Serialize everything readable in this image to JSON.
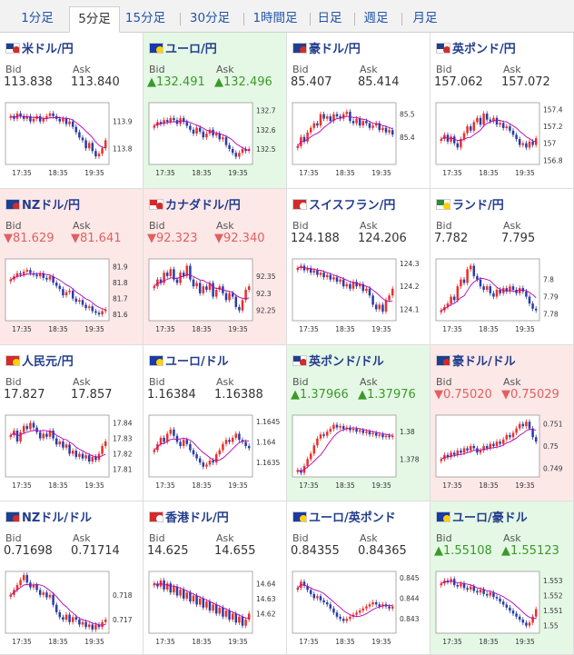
{
  "tabs": [
    "1分足",
    "5分足",
    "15分足",
    "30分足",
    "1時間足",
    "日足",
    "週足",
    "月足"
  ],
  "active_tab": 1,
  "colors": {
    "up_bg": "#e5f8e5",
    "down_bg": "#fde8e8",
    "candle_up": "#e8322a",
    "candle_down": "#2a3da8",
    "ma": "#b400b4",
    "up_text": "#3a9a2a",
    "down_text": "#e06060"
  },
  "labels": {
    "bid": "Bid",
    "ask": "Ask"
  },
  "pairs": [
    {
      "name": "米ドル/円",
      "flag": "us",
      "bid": "113.838",
      "ask": "113.840",
      "trend": "none",
      "chart_data": {
        "type": "candlestick",
        "x_ticks": [
          "17:35",
          "18:35",
          "19:35"
        ],
        "y_ticks": [
          "113.9",
          "113.8"
        ],
        "ylim": [
          113.74,
          113.97
        ],
        "closes": [
          113.92,
          113.91,
          113.93,
          113.92,
          113.91,
          113.92,
          113.9,
          113.91,
          113.92,
          113.9,
          113.91,
          113.92,
          113.93,
          113.92,
          113.91,
          113.9,
          113.91,
          113.89,
          113.9,
          113.88,
          113.86,
          113.84,
          113.83,
          113.8,
          113.82,
          113.79,
          113.77,
          113.78,
          113.8,
          113.83
        ]
      }
    },
    {
      "name": "ユーロ/円",
      "flag": "eu",
      "bid": "▲132.491",
      "ask": "▲132.496",
      "trend": "up",
      "chart_data": {
        "type": "candlestick",
        "x_ticks": [
          "17:35",
          "18:35",
          "19:35"
        ],
        "y_ticks": [
          "132.7",
          "132.6",
          "132.5"
        ],
        "ylim": [
          132.42,
          132.74
        ],
        "closes": [
          132.62,
          132.64,
          132.63,
          132.65,
          132.64,
          132.66,
          132.65,
          132.63,
          132.66,
          132.64,
          132.62,
          132.6,
          132.58,
          132.61,
          132.59,
          132.56,
          132.58,
          132.6,
          132.57,
          132.58,
          132.55,
          132.56,
          132.52,
          132.5,
          132.48,
          132.46,
          132.48,
          132.5,
          132.49,
          132.5
        ]
      }
    },
    {
      "name": "豪ドル/円",
      "flag": "au",
      "bid": "85.407",
      "ask": "85.414",
      "trend": "none",
      "chart_data": {
        "type": "candlestick",
        "x_ticks": [
          "17:35",
          "18:35",
          "19:35"
        ],
        "y_ticks": [
          "85.5",
          "85.4"
        ],
        "ylim": [
          85.28,
          85.55
        ],
        "closes": [
          85.36,
          85.4,
          85.38,
          85.42,
          85.44,
          85.46,
          85.45,
          85.5,
          85.48,
          85.49,
          85.47,
          85.5,
          85.49,
          85.48,
          85.5,
          85.51,
          85.47,
          85.46,
          85.48,
          85.45,
          85.47,
          85.46,
          85.44,
          85.45,
          85.46,
          85.43,
          85.44,
          85.42,
          85.43,
          85.41
        ]
      }
    },
    {
      "name": "英ポンド/円",
      "flag": "gb",
      "bid": "157.062",
      "ask": "157.072",
      "trend": "none",
      "chart_data": {
        "type": "candlestick",
        "x_ticks": [
          "17:35",
          "18:35",
          "19:35"
        ],
        "y_ticks": [
          "157.4",
          "157.2",
          "157",
          "156.8"
        ],
        "ylim": [
          156.75,
          157.48
        ],
        "closes": [
          157.05,
          157.1,
          157.02,
          157.08,
          157.0,
          156.95,
          157.05,
          157.12,
          157.2,
          157.15,
          157.25,
          157.3,
          157.22,
          157.35,
          157.28,
          157.26,
          157.3,
          157.22,
          157.24,
          157.18,
          157.2,
          157.15,
          157.1,
          157.05,
          156.98,
          157.0,
          156.95,
          157.02,
          156.98,
          157.06
        ]
      }
    },
    {
      "name": "NZドル/円",
      "flag": "nz",
      "bid": "▼81.629",
      "ask": "▼81.641",
      "trend": "down",
      "chart_data": {
        "type": "candlestick",
        "x_ticks": [
          "17:35",
          "18:35",
          "19:35"
        ],
        "y_ticks": [
          "81.9",
          "81.8",
          "81.7",
          "81.6"
        ],
        "ylim": [
          81.56,
          81.95
        ],
        "closes": [
          81.82,
          81.84,
          81.86,
          81.85,
          81.87,
          81.88,
          81.86,
          81.85,
          81.84,
          81.86,
          81.83,
          81.82,
          81.84,
          81.8,
          81.78,
          81.76,
          81.72,
          81.74,
          81.75,
          81.7,
          81.68,
          81.69,
          81.66,
          81.64,
          81.65,
          81.62,
          81.61,
          81.6,
          81.62,
          81.63
        ]
      }
    },
    {
      "name": "カナダドル/円",
      "flag": "ca",
      "bid": "▼92.323",
      "ask": "▼92.340",
      "trend": "down",
      "chart_data": {
        "type": "candlestick",
        "x_ticks": [
          "17:35",
          "18:35",
          "19:35"
        ],
        "y_ticks": [
          "92.35",
          "92.3",
          "92.25"
        ],
        "ylim": [
          92.22,
          92.4
        ],
        "closes": [
          92.32,
          92.34,
          92.33,
          92.36,
          92.35,
          92.37,
          92.34,
          92.33,
          92.36,
          92.35,
          92.38,
          92.34,
          92.32,
          92.33,
          92.3,
          92.32,
          92.31,
          92.33,
          92.29,
          92.31,
          92.32,
          92.3,
          92.28,
          92.3,
          92.29,
          92.26,
          92.25,
          92.28,
          92.31,
          92.32
        ]
      }
    },
    {
      "name": "スイスフラン/円",
      "flag": "ch",
      "bid": "124.188",
      "ask": "124.206",
      "trend": "none",
      "chart_data": {
        "type": "candlestick",
        "x_ticks": [
          "17:35",
          "18:35",
          "19:35"
        ],
        "y_ticks": [
          "124.3",
          "124.2",
          "124.1"
        ],
        "ylim": [
          124.05,
          124.32
        ],
        "closes": [
          124.28,
          124.29,
          124.27,
          124.28,
          124.26,
          124.27,
          124.25,
          124.26,
          124.24,
          124.25,
          124.23,
          124.24,
          124.22,
          124.23,
          124.2,
          124.21,
          124.19,
          124.22,
          124.2,
          124.21,
          124.18,
          124.19,
          124.16,
          124.12,
          124.1,
          124.12,
          124.09,
          124.14,
          124.16,
          124.19
        ]
      }
    },
    {
      "name": "ランド/円",
      "flag": "za",
      "bid": "7.782",
      "ask": "7.795",
      "trend": "none",
      "chart_data": {
        "type": "candlestick",
        "x_ticks": [
          "17:35",
          "18:35",
          "19:35"
        ],
        "y_ticks": [
          "7.8",
          "7.79",
          "7.78"
        ],
        "ylim": [
          7.776,
          7.812
        ],
        "closes": [
          7.782,
          7.784,
          7.786,
          7.79,
          7.788,
          7.796,
          7.8,
          7.798,
          7.806,
          7.808,
          7.802,
          7.8,
          7.796,
          7.794,
          7.796,
          7.792,
          7.79,
          7.794,
          7.792,
          7.795,
          7.793,
          7.796,
          7.794,
          7.792,
          7.795,
          7.793,
          7.79,
          7.786,
          7.783,
          7.782
        ]
      }
    },
    {
      "name": "人民元/円",
      "flag": "cn",
      "bid": "17.827",
      "ask": "17.857",
      "trend": "none",
      "chart_data": {
        "type": "candlestick",
        "x_ticks": [
          "17:35",
          "18:35",
          "19:35"
        ],
        "y_ticks": [
          "17.84",
          "17.83",
          "17.82",
          "17.81"
        ],
        "ylim": [
          17.805,
          17.845
        ],
        "closes": [
          17.832,
          17.835,
          17.828,
          17.834,
          17.838,
          17.836,
          17.84,
          17.837,
          17.834,
          17.83,
          17.833,
          17.831,
          17.835,
          17.83,
          17.826,
          17.828,
          17.824,
          17.826,
          17.82,
          17.822,
          17.818,
          17.82,
          17.817,
          17.819,
          17.815,
          17.818,
          17.816,
          17.82,
          17.825,
          17.828
        ]
      }
    },
    {
      "name": "ユーロ/ドル",
      "flag": "eu",
      "bid": "1.16384",
      "ask": "1.16388",
      "trend": "none",
      "chart_data": {
        "type": "candlestick",
        "x_ticks": [
          "17:35",
          "18:35",
          "19:35"
        ],
        "y_ticks": [
          "1.1645",
          "1.164",
          "1.1635"
        ],
        "ylim": [
          1.16315,
          1.16465
        ],
        "closes": [
          1.1638,
          1.16395,
          1.1641,
          1.164,
          1.1642,
          1.1643,
          1.16415,
          1.164,
          1.1639,
          1.16405,
          1.16395,
          1.1638,
          1.1637,
          1.1636,
          1.1635,
          1.1634,
          1.16345,
          1.16355,
          1.1635,
          1.1637,
          1.1638,
          1.16395,
          1.16405,
          1.164,
          1.1641,
          1.1642,
          1.16405,
          1.164,
          1.1639,
          1.16385
        ]
      }
    },
    {
      "name": "英ポンド/ドル",
      "flag": "gb",
      "bid": "▲1.37966",
      "ask": "▲1.37976",
      "trend": "up",
      "chart_data": {
        "type": "candlestick",
        "x_ticks": [
          "17:35",
          "18:35",
          "19:35"
        ],
        "y_ticks": [
          "1.38",
          "1.378"
        ],
        "ylim": [
          1.3767,
          1.3812
        ],
        "closes": [
          1.3772,
          1.377,
          1.3775,
          1.378,
          1.3784,
          1.379,
          1.3795,
          1.3798,
          1.3797,
          1.38,
          1.3802,
          1.3805,
          1.3803,
          1.3804,
          1.3802,
          1.3803,
          1.3801,
          1.3802,
          1.38,
          1.3801,
          1.3799,
          1.38,
          1.3798,
          1.3799,
          1.3797,
          1.3798,
          1.3796,
          1.3797,
          1.3796,
          1.3797
        ]
      }
    },
    {
      "name": "豪ドル/ドル",
      "flag": "au",
      "bid": "▼0.75020",
      "ask": "▼0.75029",
      "trend": "down",
      "chart_data": {
        "type": "candlestick",
        "x_ticks": [
          "17:35",
          "18:35",
          "19:35"
        ],
        "y_ticks": [
          "0.751",
          "0.75",
          "0.749"
        ],
        "ylim": [
          0.7486,
          0.7514
        ],
        "closes": [
          0.7494,
          0.7496,
          0.7495,
          0.7497,
          0.7496,
          0.7498,
          0.7497,
          0.7499,
          0.7498,
          0.75,
          0.7499,
          0.7497,
          0.7498,
          0.75,
          0.7499,
          0.7501,
          0.75,
          0.7502,
          0.7501,
          0.7503,
          0.7505,
          0.7504,
          0.7506,
          0.7508,
          0.751,
          0.7509,
          0.7511,
          0.7508,
          0.7504,
          0.7502
        ]
      }
    },
    {
      "name": "NZドル/ドル",
      "flag": "nz",
      "bid": "0.71698",
      "ask": "0.71714",
      "trend": "none",
      "chart_data": {
        "type": "candlestick",
        "x_ticks": [
          "17:35",
          "18:35",
          "19:35"
        ],
        "y_ticks": [
          "0.718",
          "0.717"
        ],
        "ylim": [
          0.71645,
          0.71895
        ],
        "closes": [
          0.718,
          0.7182,
          0.7184,
          0.7186,
          0.7188,
          0.7185,
          0.7183,
          0.7184,
          0.7182,
          0.718,
          0.7181,
          0.7179,
          0.718,
          0.7176,
          0.7173,
          0.7171,
          0.717,
          0.7172,
          0.7169,
          0.7171,
          0.717,
          0.7168,
          0.7169,
          0.7167,
          0.7168,
          0.7166,
          0.7168,
          0.7167,
          0.7169,
          0.717
        ]
      }
    },
    {
      "name": "香港ドル/円",
      "flag": "hk",
      "bid": "14.625",
      "ask": "14.655",
      "trend": "none",
      "chart_data": {
        "type": "candlestick",
        "x_ticks": [
          "17:35",
          "18:35",
          "19:35"
        ],
        "y_ticks": [
          "14.64",
          "14.63",
          "14.62"
        ],
        "ylim": [
          14.607,
          14.648
        ],
        "closes": [
          14.64,
          14.638,
          14.642,
          14.636,
          14.64,
          14.634,
          14.638,
          14.632,
          14.636,
          14.63,
          14.634,
          14.628,
          14.632,
          14.626,
          14.63,
          14.624,
          14.628,
          14.622,
          14.626,
          14.62,
          14.624,
          14.618,
          14.622,
          14.616,
          14.62,
          14.614,
          14.618,
          14.612,
          14.616,
          14.62
        ]
      }
    },
    {
      "name": "ユーロ/英ポンド",
      "flag": "eu",
      "bid": "0.84355",
      "ask": "0.84365",
      "trend": "none",
      "chart_data": {
        "type": "candlestick",
        "x_ticks": [
          "17:35",
          "18:35",
          "19:35"
        ],
        "y_ticks": [
          "0.845",
          "0.844",
          "0.843"
        ],
        "ylim": [
          0.8423,
          0.8453
        ],
        "closes": [
          0.8445,
          0.8448,
          0.8446,
          0.8444,
          0.8442,
          0.844,
          0.8441,
          0.8439,
          0.8438,
          0.8437,
          0.8435,
          0.8433,
          0.8431,
          0.843,
          0.8429,
          0.843,
          0.8431,
          0.8432,
          0.8433,
          0.8434,
          0.8435,
          0.8436,
          0.8437,
          0.8438,
          0.8437,
          0.8436,
          0.8437,
          0.8436,
          0.8435,
          0.8436
        ]
      }
    },
    {
      "name": "ユーロ/豪ドル",
      "flag": "eu",
      "bid": "▲1.55108",
      "ask": "▲1.55123",
      "trend": "up",
      "chart_data": {
        "type": "candlestick",
        "x_ticks": [
          "17:35",
          "18:35",
          "19:35"
        ],
        "y_ticks": [
          "1.553",
          "1.552",
          "1.551",
          "1.55"
        ],
        "ylim": [
          1.5495,
          1.5536
        ],
        "closes": [
          1.5528,
          1.553,
          1.5529,
          1.5531,
          1.5527,
          1.5526,
          1.5528,
          1.5525,
          1.5524,
          1.5526,
          1.5523,
          1.5522,
          1.5524,
          1.5521,
          1.552,
          1.5522,
          1.5519,
          1.5518,
          1.5516,
          1.5514,
          1.5512,
          1.551,
          1.5508,
          1.5506,
          1.5504,
          1.5502,
          1.55,
          1.5502,
          1.5506,
          1.5511
        ]
      }
    }
  ]
}
